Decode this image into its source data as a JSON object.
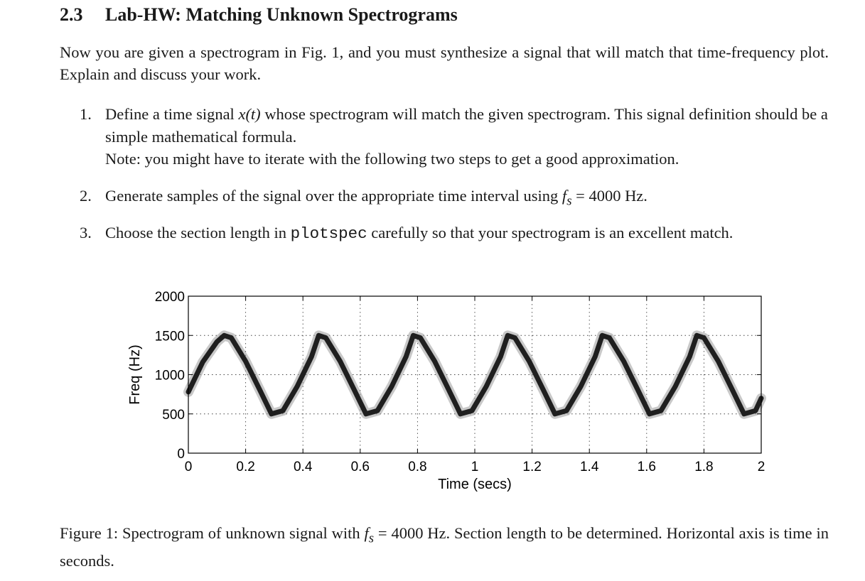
{
  "section": {
    "number": "2.3",
    "title": "Lab-HW: Matching Unknown Spectrograms",
    "intro": "Now you are given a spectrogram in Fig. 1, and you must synthesize a signal that will match that time-frequency plot. Explain and discuss your work."
  },
  "steps": [
    {
      "marker": "1.",
      "text_before": "Define a time signal ",
      "math": "x(t)",
      "text_after": " whose spectrogram will match the given spectrogram. This signal definition should be a simple mathematical formula.",
      "note": "Note: you might have to iterate with the following two steps to get a good approximation."
    },
    {
      "marker": "2.",
      "text_before": "Generate samples of the signal over the appropriate time interval using ",
      "math_var": "f",
      "math_sub": "s",
      "math_eq": " = ",
      "text_after": "4000 Hz."
    },
    {
      "marker": "3.",
      "text_before": "Choose the section length in ",
      "code": "plotspec",
      "text_after": " carefully so that your spectrogram is an excellent match."
    }
  ],
  "figure": {
    "caption_label": "Figure 1:",
    "caption_before": " Spectrogram of unknown signal with ",
    "caption_var": "f",
    "caption_sub": "s",
    "caption_eq": " = ",
    "caption_after": "4000 Hz. Section length to be determined. Horizontal axis is time in seconds."
  },
  "chart_data": {
    "type": "line",
    "title": "",
    "xlabel": "Time (secs)",
    "ylabel": "Freq (Hz)",
    "xlim": [
      0,
      2
    ],
    "ylim": [
      0,
      2000
    ],
    "xticks": [
      0,
      0.2,
      0.4,
      0.6,
      0.8,
      1,
      1.2,
      1.4,
      1.6,
      1.8,
      2
    ],
    "xtick_labels": [
      "0",
      "0.2",
      "0.4",
      "0.6",
      "0.8",
      "1",
      "1.2",
      "1.4",
      "1.6",
      "1.8",
      "2"
    ],
    "yticks": [
      0,
      500,
      1000,
      1500,
      2000
    ],
    "ytick_labels": [
      "0",
      "500",
      "1000",
      "1500",
      "2000"
    ],
    "grid": "dotted",
    "line_color": "#1f1f1f",
    "series": [
      {
        "x": [
          0,
          0.05,
          0.1,
          0.125,
          0.15,
          0.2,
          0.25,
          0.29,
          0.33,
          0.38,
          0.43,
          0.455,
          0.48,
          0.53,
          0.58,
          0.62,
          0.66,
          0.71,
          0.76,
          0.785,
          0.81,
          0.86,
          0.91,
          0.95,
          0.99,
          1.04,
          1.09,
          1.115,
          1.14,
          1.19,
          1.24,
          1.28,
          1.32,
          1.37,
          1.42,
          1.445,
          1.47,
          1.52,
          1.57,
          1.61,
          1.65,
          1.7,
          1.75,
          1.775,
          1.8,
          1.85,
          1.9,
          1.94,
          1.98,
          2.0
        ],
        "y": [
          780,
          1160,
          1420,
          1500,
          1470,
          1170,
          800,
          500,
          540,
          850,
          1230,
          1500,
          1470,
          1170,
          800,
          500,
          540,
          850,
          1230,
          1500,
          1470,
          1170,
          800,
          500,
          540,
          850,
          1230,
          1500,
          1470,
          1170,
          800,
          500,
          540,
          850,
          1230,
          1500,
          1470,
          1170,
          800,
          500,
          540,
          850,
          1230,
          1500,
          1470,
          1170,
          800,
          500,
          540,
          700
        ]
      }
    ]
  }
}
